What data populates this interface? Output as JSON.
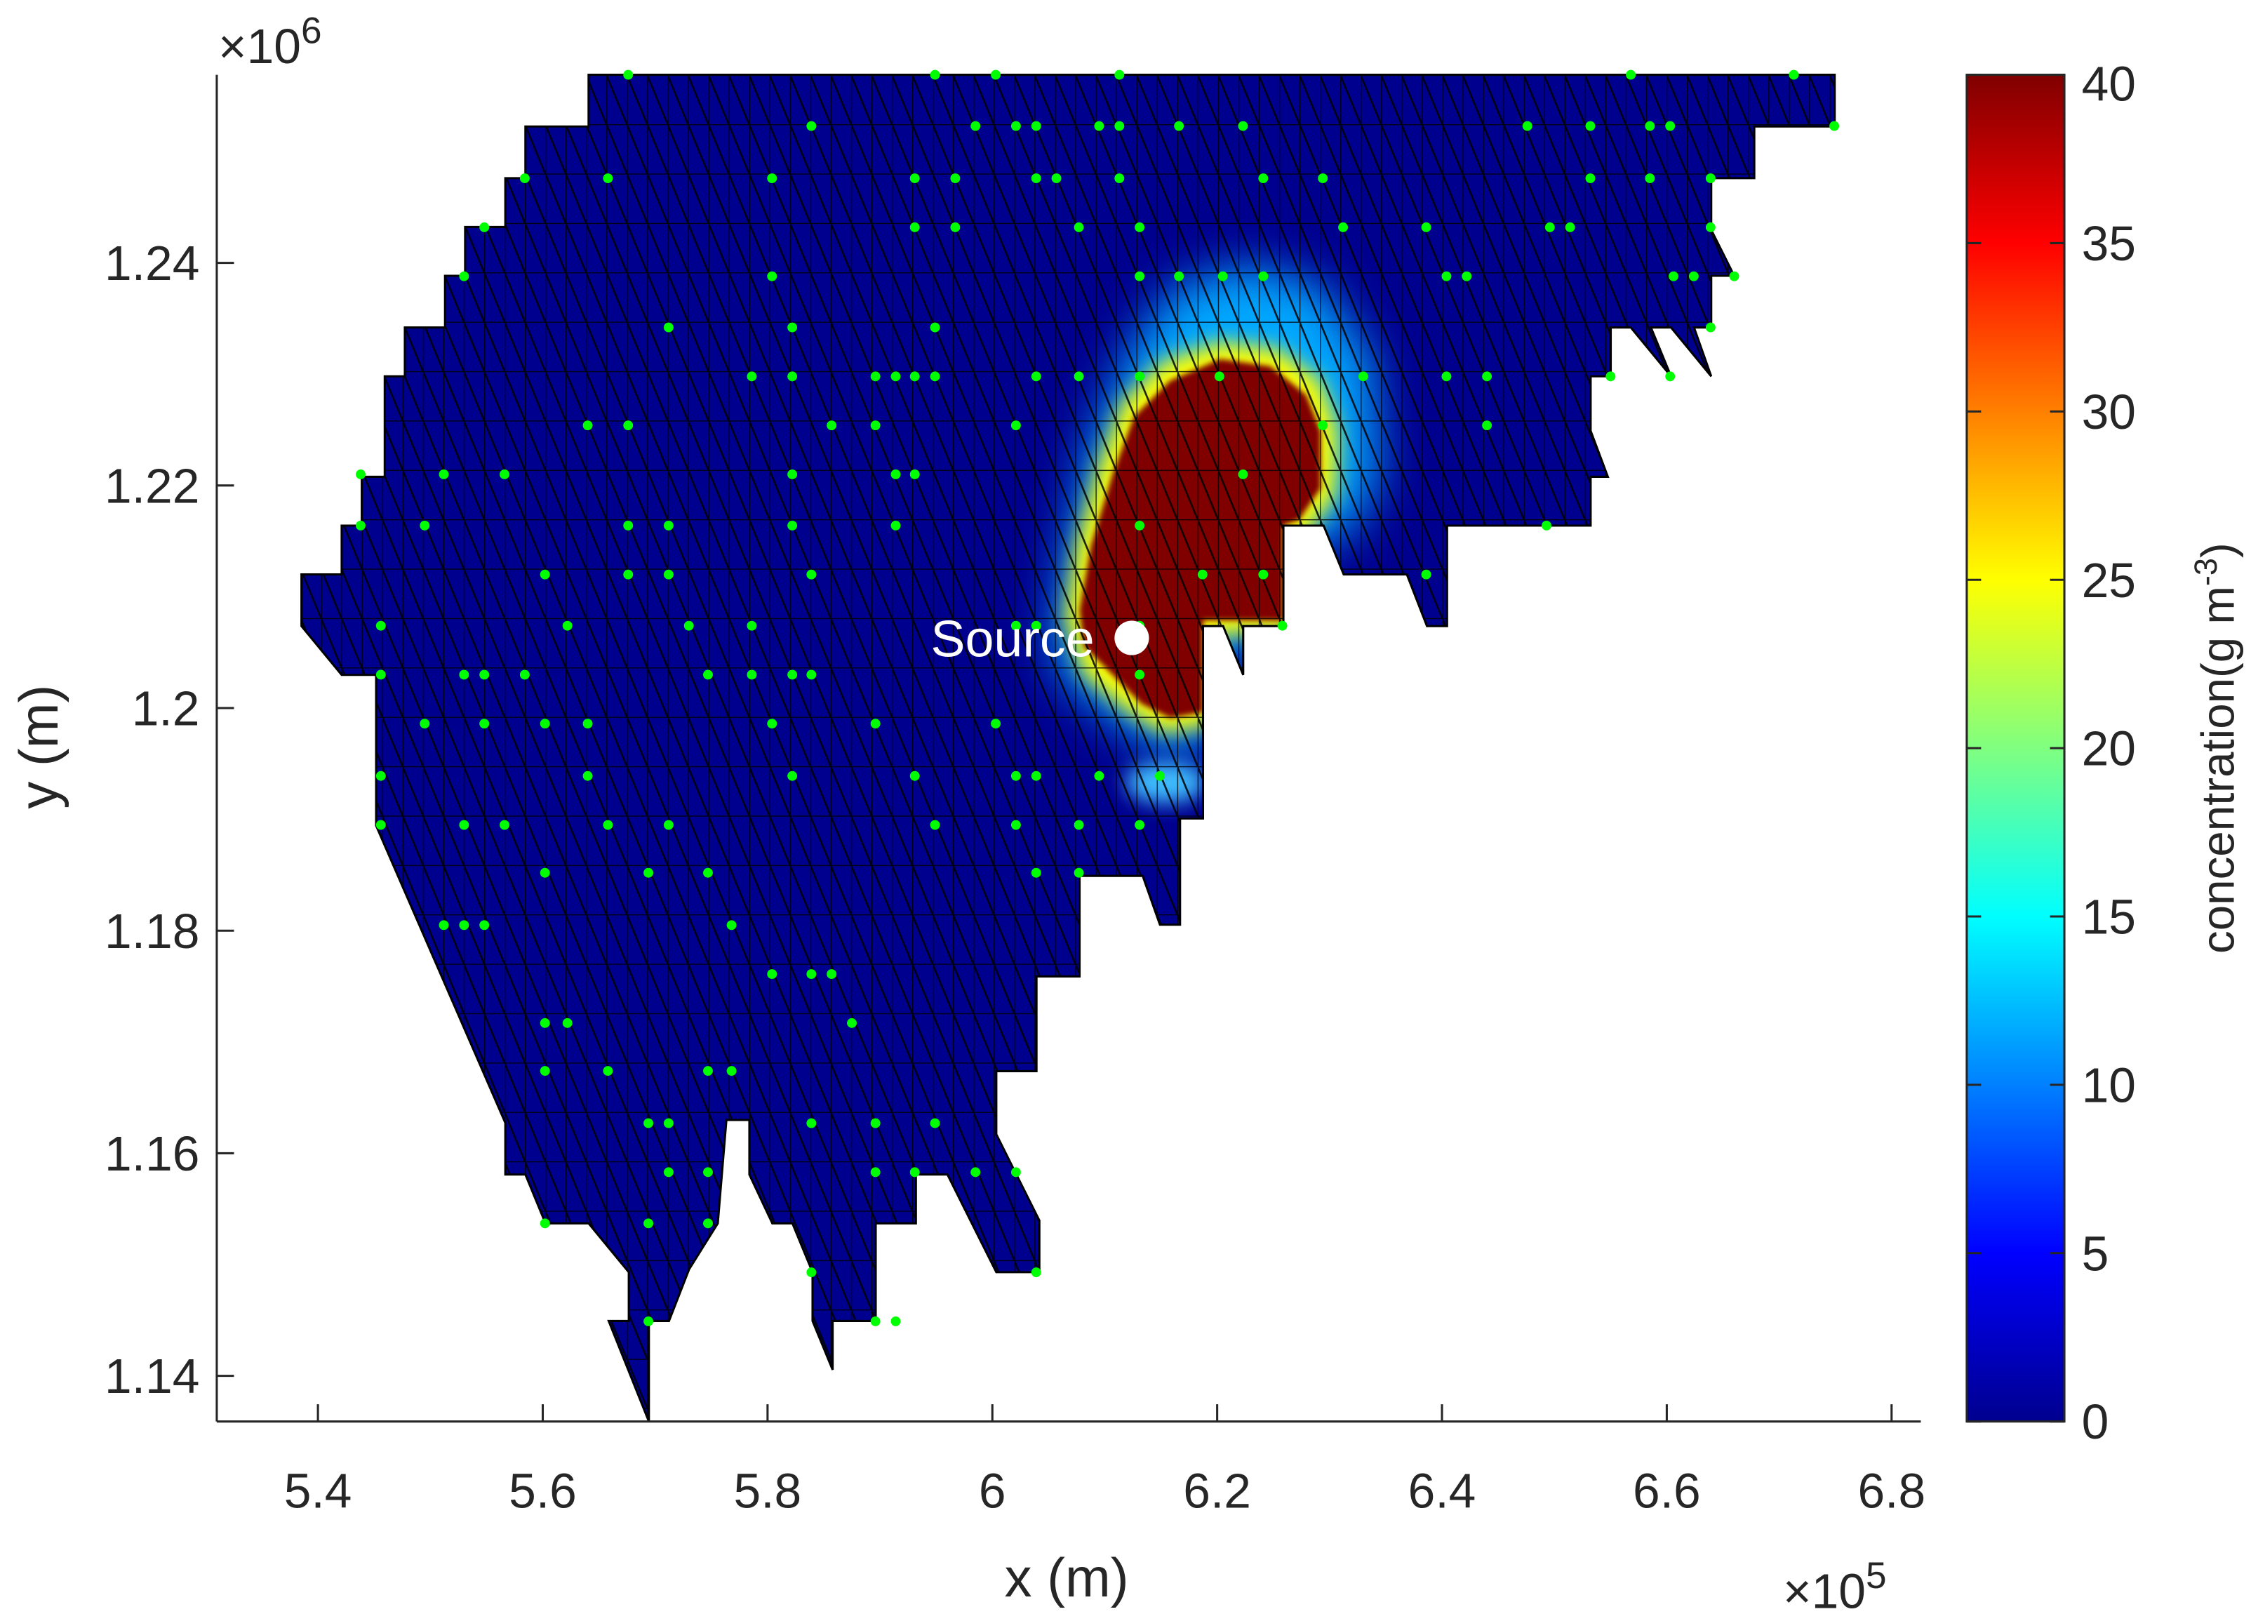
{
  "chart_data": {
    "type": "mesh-scatter",
    "xlabel": "x (m)",
    "ylabel": "y (m)",
    "x_multiplier": {
      "base": "×10",
      "exponent": "5"
    },
    "y_multiplier": {
      "base": "×10",
      "exponent": "6"
    },
    "xlim": [
      531000,
      682600
    ],
    "ylim": [
      1135900,
      1256900
    ],
    "xticks": [
      {
        "value": 540000,
        "label": "5.4"
      },
      {
        "value": 560000,
        "label": "5.6"
      },
      {
        "value": 580000,
        "label": "5.8"
      },
      {
        "value": 600000,
        "label": "6"
      },
      {
        "value": 620000,
        "label": "6.2"
      },
      {
        "value": 640000,
        "label": "6.4"
      },
      {
        "value": 660000,
        "label": "6.6"
      },
      {
        "value": 680000,
        "label": "6.8"
      }
    ],
    "yticks": [
      {
        "value": 1140000,
        "label": "1.14"
      },
      {
        "value": 1160000,
        "label": "1.16"
      },
      {
        "value": 1180000,
        "label": "1.18"
      },
      {
        "value": 1200000,
        "label": "1.2"
      },
      {
        "value": 1220000,
        "label": "1.22"
      },
      {
        "value": 1240000,
        "label": "1.24"
      }
    ],
    "source": {
      "label": "Source",
      "x": 612400,
      "y": 1206300,
      "color": "#ffffff"
    },
    "sensor_color": "#00ff00",
    "sensors": [
      [
        567600,
        1256900
      ],
      [
        594900,
        1256900
      ],
      [
        600300,
        1256900
      ],
      [
        611300,
        1256900
      ],
      [
        656800,
        1256900
      ],
      [
        671300,
        1256900
      ],
      [
        583900,
        1252300
      ],
      [
        598500,
        1252300
      ],
      [
        602100,
        1252300
      ],
      [
        603900,
        1252300
      ],
      [
        609500,
        1252300
      ],
      [
        611300,
        1252300
      ],
      [
        616600,
        1252300
      ],
      [
        622300,
        1252300
      ],
      [
        647600,
        1252300
      ],
      [
        653200,
        1252300
      ],
      [
        658500,
        1252300
      ],
      [
        660300,
        1252300
      ],
      [
        674900,
        1252300
      ],
      [
        558400,
        1247600
      ],
      [
        565800,
        1247600
      ],
      [
        580400,
        1247600
      ],
      [
        593100,
        1247600
      ],
      [
        596700,
        1247600
      ],
      [
        603900,
        1247600
      ],
      [
        605700,
        1247600
      ],
      [
        611300,
        1247600
      ],
      [
        624100,
        1247600
      ],
      [
        629400,
        1247600
      ],
      [
        653200,
        1247600
      ],
      [
        658500,
        1247600
      ],
      [
        663900,
        1247600
      ],
      [
        554800,
        1243200
      ],
      [
        593100,
        1243200
      ],
      [
        596700,
        1243200
      ],
      [
        607700,
        1243200
      ],
      [
        613100,
        1243200
      ],
      [
        631200,
        1243200
      ],
      [
        638600,
        1243200
      ],
      [
        649600,
        1243200
      ],
      [
        651400,
        1243200
      ],
      [
        663900,
        1243200
      ],
      [
        553000,
        1238800
      ],
      [
        580400,
        1238800
      ],
      [
        613100,
        1238800
      ],
      [
        616600,
        1238800
      ],
      [
        620500,
        1238800
      ],
      [
        624100,
        1238800
      ],
      [
        640400,
        1238800
      ],
      [
        642200,
        1238800
      ],
      [
        660600,
        1238800
      ],
      [
        662400,
        1238800
      ],
      [
        666000,
        1238800
      ],
      [
        571200,
        1234200
      ],
      [
        582200,
        1234200
      ],
      [
        594900,
        1234200
      ],
      [
        663900,
        1234200
      ],
      [
        578600,
        1229800
      ],
      [
        582200,
        1229800
      ],
      [
        589600,
        1229800
      ],
      [
        591400,
        1229800
      ],
      [
        593100,
        1229800
      ],
      [
        594900,
        1229800
      ],
      [
        603900,
        1229800
      ],
      [
        607700,
        1229800
      ],
      [
        613100,
        1229800
      ],
      [
        620200,
        1229800
      ],
      [
        633000,
        1229800
      ],
      [
        640400,
        1229800
      ],
      [
        644000,
        1229800
      ],
      [
        655000,
        1229800
      ],
      [
        660300,
        1229800
      ],
      [
        564000,
        1225400
      ],
      [
        567600,
        1225400
      ],
      [
        585700,
        1225400
      ],
      [
        589600,
        1225400
      ],
      [
        602100,
        1225400
      ],
      [
        629400,
        1225400
      ],
      [
        644000,
        1225400
      ],
      [
        543800,
        1221000
      ],
      [
        551200,
        1221000
      ],
      [
        556600,
        1221000
      ],
      [
        582200,
        1221000
      ],
      [
        591400,
        1221000
      ],
      [
        593100,
        1221000
      ],
      [
        622300,
        1221000
      ],
      [
        543800,
        1216400
      ],
      [
        549500,
        1216400
      ],
      [
        567600,
        1216400
      ],
      [
        571200,
        1216400
      ],
      [
        582200,
        1216400
      ],
      [
        591400,
        1216400
      ],
      [
        613100,
        1216400
      ],
      [
        649300,
        1216400
      ],
      [
        560200,
        1212000
      ],
      [
        567600,
        1212000
      ],
      [
        571200,
        1212000
      ],
      [
        583900,
        1212000
      ],
      [
        618700,
        1212000
      ],
      [
        624100,
        1212000
      ],
      [
        638600,
        1212000
      ],
      [
        545600,
        1207400
      ],
      [
        562200,
        1207400
      ],
      [
        573000,
        1207400
      ],
      [
        578600,
        1207400
      ],
      [
        602100,
        1207400
      ],
      [
        603900,
        1207400
      ],
      [
        613100,
        1207400
      ],
      [
        625800,
        1207400
      ],
      [
        545600,
        1203000
      ],
      [
        553000,
        1203000
      ],
      [
        554800,
        1203000
      ],
      [
        558400,
        1203000
      ],
      [
        574700,
        1203000
      ],
      [
        578600,
        1203000
      ],
      [
        582200,
        1203000
      ],
      [
        583900,
        1203000
      ],
      [
        613100,
        1203000
      ],
      [
        549500,
        1198600
      ],
      [
        554800,
        1198600
      ],
      [
        560200,
        1198600
      ],
      [
        564000,
        1198600
      ],
      [
        580400,
        1198600
      ],
      [
        589600,
        1198600
      ],
      [
        600300,
        1198600
      ],
      [
        545600,
        1193900
      ],
      [
        564000,
        1193900
      ],
      [
        582200,
        1193900
      ],
      [
        593100,
        1193900
      ],
      [
        602100,
        1193900
      ],
      [
        603900,
        1193900
      ],
      [
        609500,
        1193900
      ],
      [
        614900,
        1193900
      ],
      [
        545600,
        1189500
      ],
      [
        553000,
        1189500
      ],
      [
        556600,
        1189500
      ],
      [
        565800,
        1189500
      ],
      [
        571200,
        1189500
      ],
      [
        594900,
        1189500
      ],
      [
        602100,
        1189500
      ],
      [
        607700,
        1189500
      ],
      [
        613100,
        1189500
      ],
      [
        560200,
        1185200
      ],
      [
        569400,
        1185200
      ],
      [
        574700,
        1185200
      ],
      [
        603900,
        1185200
      ],
      [
        607700,
        1185200
      ],
      [
        551200,
        1180500
      ],
      [
        553000,
        1180500
      ],
      [
        554800,
        1180500
      ],
      [
        576800,
        1180500
      ],
      [
        580400,
        1176100
      ],
      [
        583900,
        1176100
      ],
      [
        585700,
        1176100
      ],
      [
        560200,
        1171700
      ],
      [
        562200,
        1171700
      ],
      [
        587500,
        1171700
      ],
      [
        560200,
        1167400
      ],
      [
        565800,
        1167400
      ],
      [
        574700,
        1167400
      ],
      [
        576800,
        1167400
      ],
      [
        569400,
        1162700
      ],
      [
        571200,
        1162700
      ],
      [
        583900,
        1162700
      ],
      [
        589600,
        1162700
      ],
      [
        594900,
        1162700
      ],
      [
        571200,
        1158300
      ],
      [
        574700,
        1158300
      ],
      [
        589600,
        1158300
      ],
      [
        593100,
        1158300
      ],
      [
        598500,
        1158300
      ],
      [
        602100,
        1158300
      ],
      [
        560200,
        1153700
      ],
      [
        569400,
        1153700
      ],
      [
        574700,
        1153700
      ],
      [
        583900,
        1149300
      ],
      [
        603900,
        1149300
      ],
      [
        569400,
        1144900
      ],
      [
        589600,
        1144900
      ],
      [
        591400,
        1144900
      ]
    ],
    "colorbar": {
      "label": {
        "text": "concentration(g m",
        "superscript": "-3",
        "suffix": ")"
      },
      "clim": [
        0,
        40
      ],
      "ticks": [
        0,
        5,
        10,
        15,
        20,
        25,
        30,
        35,
        40
      ],
      "colormap": [
        "#00008f",
        "#0000ff",
        "#0080ff",
        "#00ffff",
        "#80ff80",
        "#ffff00",
        "#ff8000",
        "#ff0000",
        "#800000"
      ]
    }
  }
}
